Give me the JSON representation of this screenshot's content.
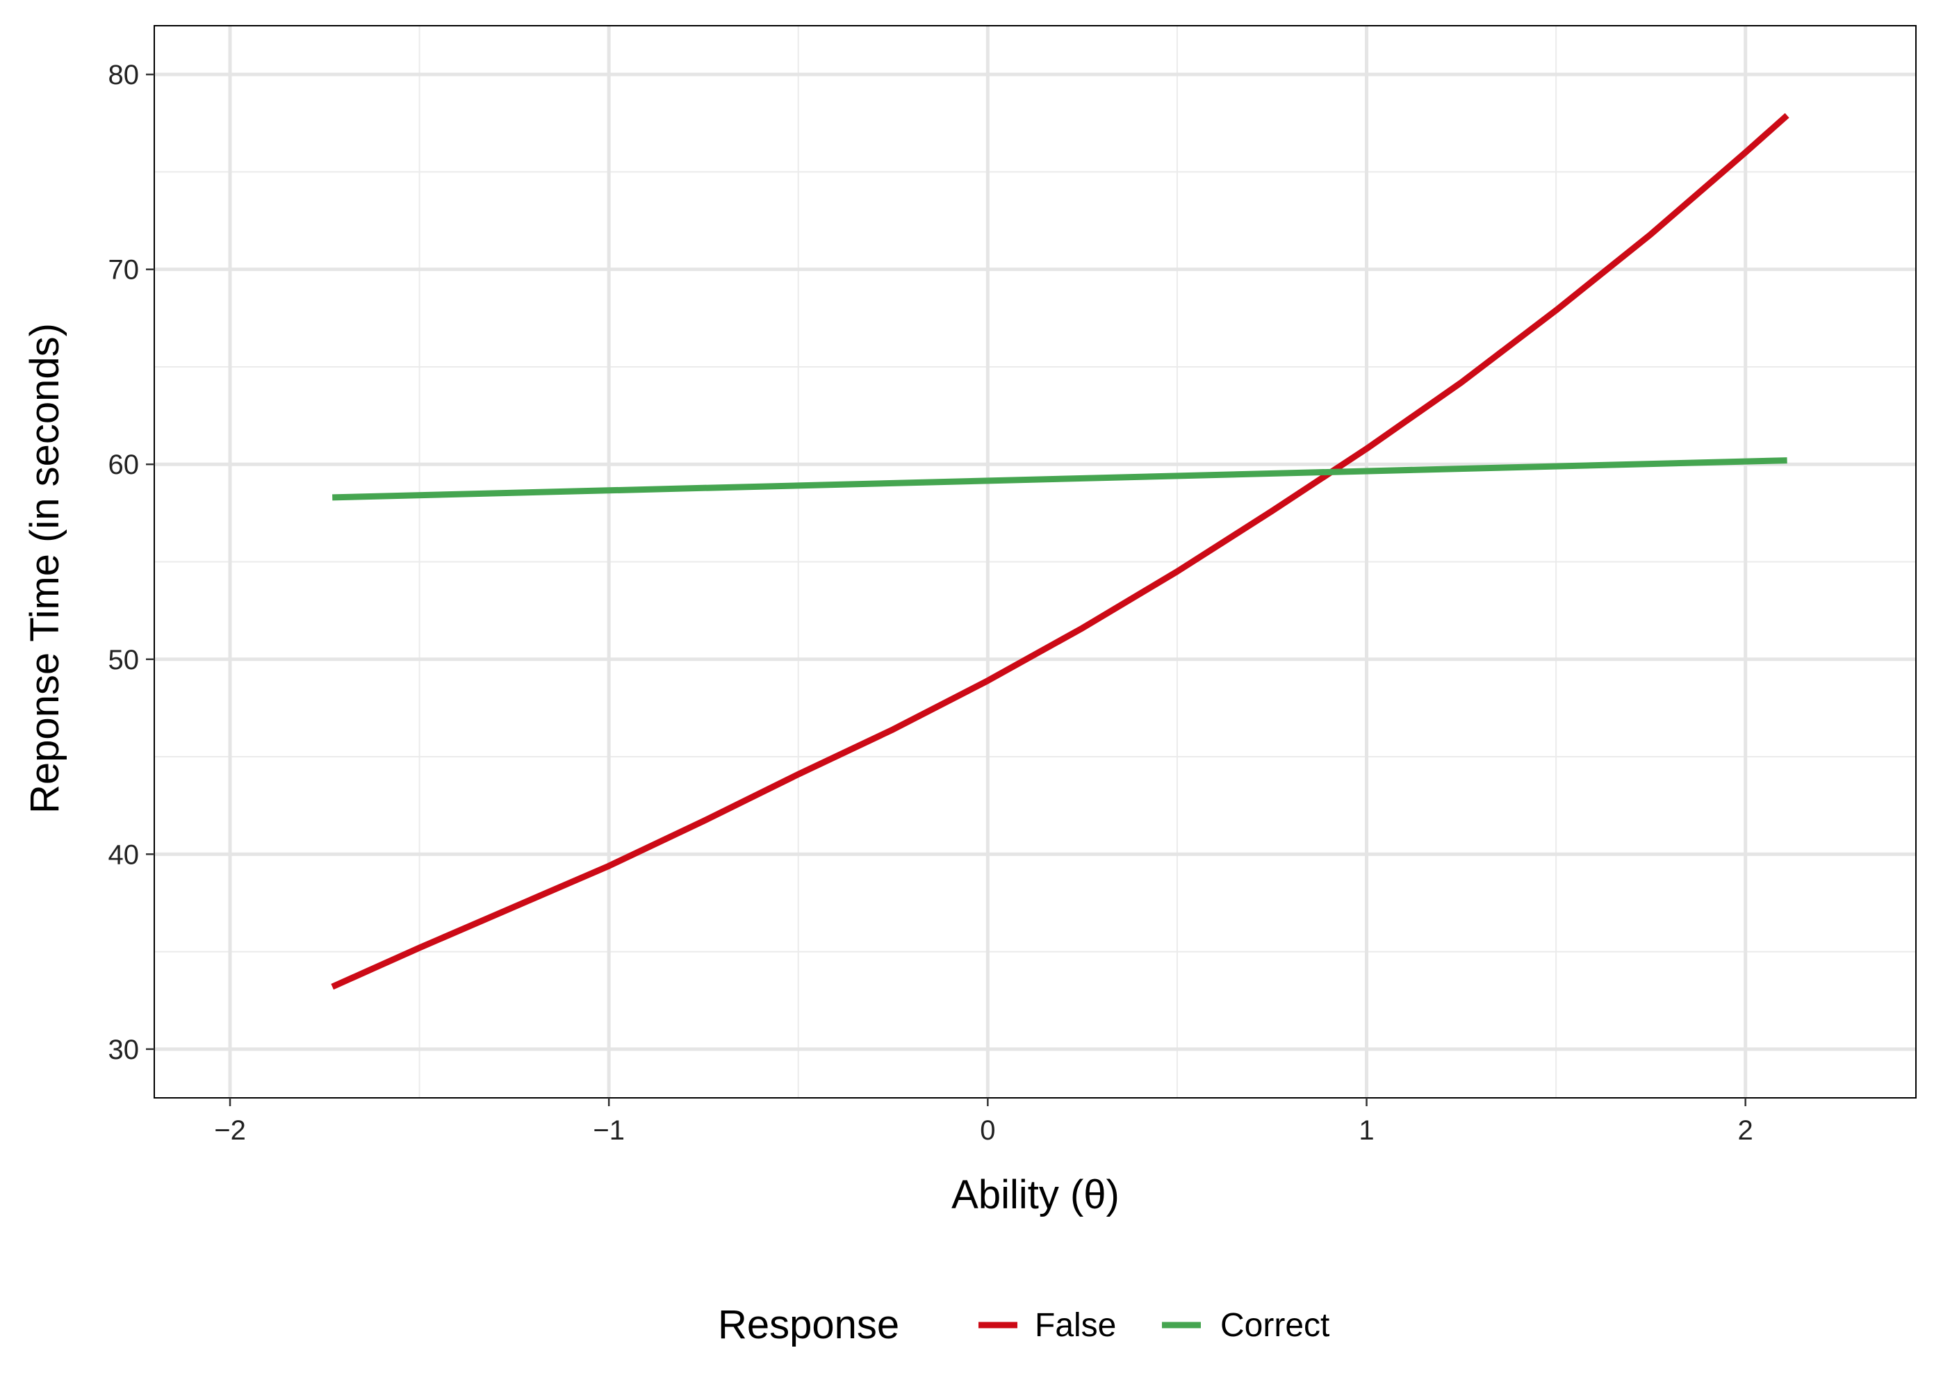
{
  "chart_data": {
    "type": "line",
    "xlabel": "Ability (θ)",
    "ylabel": "Reponse Time (in seconds)",
    "xlim": [
      -2.2,
      2.45
    ],
    "ylim": [
      27.5,
      82.5
    ],
    "xticks": [
      -2,
      -1,
      0,
      1,
      2
    ],
    "xtick_labels": [
      "−2",
      "−1",
      "0",
      "1",
      "2"
    ],
    "yticks": [
      30,
      40,
      50,
      60,
      70,
      80
    ],
    "ytick_labels": [
      "30",
      "40",
      "50",
      "60",
      "70",
      "80"
    ],
    "grid": true,
    "legend": {
      "title": "Response",
      "position": "bottom"
    },
    "series": [
      {
        "name": "False",
        "color": "#CC0A16",
        "x": [
          -1.73,
          -1.5,
          -1.25,
          -1.0,
          -0.75,
          -0.5,
          -0.25,
          0.0,
          0.25,
          0.5,
          0.75,
          1.0,
          1.25,
          1.5,
          1.75,
          2.0,
          2.11
        ],
        "y": [
          33.2,
          35.2,
          37.3,
          39.4,
          41.7,
          44.1,
          46.4,
          48.9,
          51.6,
          54.5,
          57.6,
          60.8,
          64.2,
          67.9,
          71.8,
          76.0,
          77.9
        ]
      },
      {
        "name": "Correct",
        "color": "#45A550",
        "x": [
          -1.73,
          2.11
        ],
        "y": [
          58.3,
          60.2
        ]
      }
    ]
  }
}
